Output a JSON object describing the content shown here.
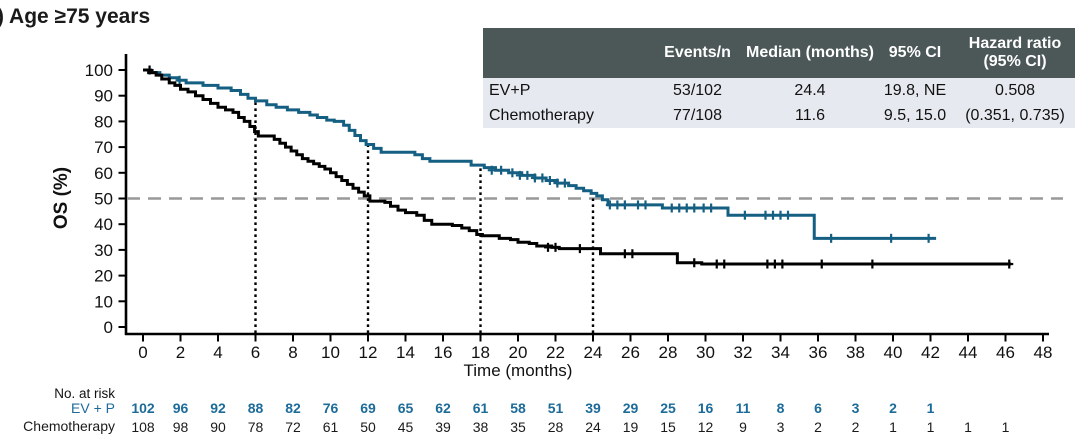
{
  "panel_label": ") Age ≥75 years",
  "y_axis": {
    "label": "OS (%)",
    "ticks": [
      0,
      10,
      20,
      30,
      40,
      50,
      60,
      70,
      80,
      90,
      100
    ]
  },
  "x_axis": {
    "label": "Time (months)",
    "ticks": [
      0,
      2,
      4,
      6,
      8,
      10,
      12,
      14,
      16,
      18,
      20,
      22,
      24,
      26,
      28,
      30,
      32,
      34,
      36,
      38,
      40,
      42,
      44,
      46,
      48
    ]
  },
  "summary_table": {
    "headers": [
      "",
      "Events/n",
      "Median (months)",
      "95% CI",
      "Hazard ratio (95% CI)"
    ],
    "rows": [
      {
        "name": "EV+P",
        "events_n": "53/102",
        "median": "24.4",
        "ci": "19.8, NE",
        "hr": "0.508"
      },
      {
        "name": "Chemotherapy",
        "events_n": "77/108",
        "median": "11.6",
        "ci": "9.5, 15.0",
        "hr": "(0.351, 0.735)"
      }
    ],
    "header_bg": "#4c5758",
    "row_bg": "#e7e9f0"
  },
  "risk_table": {
    "title": "No. at risk",
    "rows": [
      {
        "label": "EV + P",
        "color": "#1c6b99",
        "bold": true,
        "months": [
          0,
          2,
          4,
          6,
          8,
          10,
          12,
          14,
          16,
          18,
          20,
          22,
          24,
          26,
          28,
          30,
          32,
          34,
          36,
          38,
          40,
          42
        ],
        "values": [
          102,
          96,
          92,
          88,
          82,
          76,
          69,
          65,
          62,
          61,
          58,
          51,
          39,
          29,
          25,
          16,
          11,
          8,
          6,
          3,
          2,
          1
        ]
      },
      {
        "label": "Chemotherapy",
        "color": "#1a1a1a",
        "bold": false,
        "months": [
          0,
          2,
          4,
          6,
          8,
          10,
          12,
          14,
          16,
          18,
          20,
          22,
          24,
          26,
          28,
          30,
          32,
          34,
          36,
          38,
          40,
          42,
          44,
          46
        ],
        "values": [
          108,
          98,
          90,
          78,
          72,
          61,
          50,
          45,
          39,
          38,
          35,
          28,
          24,
          19,
          15,
          12,
          9,
          3,
          2,
          2,
          1,
          1,
          1,
          1
        ]
      }
    ]
  },
  "chart_data": {
    "type": "line",
    "subtype": "kaplan-meier",
    "title": ") Age ≥75 years",
    "xlabel": "Time (months)",
    "ylabel": "OS (%)",
    "xlim": [
      0,
      48
    ],
    "ylim": [
      0,
      100
    ],
    "grid": false,
    "reference_line_y": 50,
    "reference_line_color": "#999999",
    "landmark_lines": [
      {
        "x": 6,
        "top": 88
      },
      {
        "x": 12,
        "top": 71
      },
      {
        "x": 18,
        "top": 63
      },
      {
        "x": 24,
        "top": 50
      }
    ],
    "series": [
      {
        "name": "EV+P",
        "color": "#155f82",
        "end": 42.3,
        "steps": [
          [
            0,
            100
          ],
          [
            0.4,
            99
          ],
          [
            0.9,
            98
          ],
          [
            1.4,
            97
          ],
          [
            1.9,
            96
          ],
          [
            2.3,
            95
          ],
          [
            3.2,
            94
          ],
          [
            4.0,
            93
          ],
          [
            4.7,
            92
          ],
          [
            5.2,
            90.5
          ],
          [
            5.6,
            89
          ],
          [
            6.0,
            88
          ],
          [
            6.6,
            86.5
          ],
          [
            7.1,
            85.5
          ],
          [
            7.7,
            84.5
          ],
          [
            8.3,
            83.5
          ],
          [
            8.9,
            82.5
          ],
          [
            9.3,
            81.5
          ],
          [
            9.8,
            80.5
          ],
          [
            10.2,
            80
          ],
          [
            10.7,
            78.5
          ],
          [
            11.0,
            76.5
          ],
          [
            11.3,
            74.5
          ],
          [
            11.6,
            72.5
          ],
          [
            11.9,
            71
          ],
          [
            12.3,
            69.5
          ],
          [
            12.7,
            68
          ],
          [
            14.5,
            67
          ],
          [
            14.9,
            65.5
          ],
          [
            15.3,
            64.5
          ],
          [
            17.5,
            63
          ],
          [
            18.2,
            62
          ],
          [
            18.8,
            61
          ],
          [
            19.5,
            60
          ],
          [
            20.2,
            59
          ],
          [
            20.9,
            58
          ],
          [
            21.5,
            57
          ],
          [
            22.1,
            56
          ],
          [
            22.7,
            55
          ],
          [
            23.1,
            54
          ],
          [
            23.5,
            53
          ],
          [
            23.9,
            52
          ],
          [
            24.2,
            51
          ],
          [
            24.5,
            49.5
          ],
          [
            24.8,
            47.5
          ],
          [
            27.7,
            46.3
          ],
          [
            31.2,
            43.5
          ],
          [
            35.8,
            34.5
          ]
        ],
        "censors": [
          [
            1.95,
            96
          ],
          [
            18.6,
            61
          ],
          [
            19.1,
            61
          ],
          [
            19.7,
            60
          ],
          [
            20.1,
            59
          ],
          [
            20.5,
            59
          ],
          [
            20.9,
            58
          ],
          [
            21.3,
            58
          ],
          [
            21.7,
            57
          ],
          [
            22.1,
            56
          ],
          [
            22.5,
            56
          ],
          [
            24.9,
            47.5
          ],
          [
            25.3,
            47.5
          ],
          [
            25.7,
            47.5
          ],
          [
            26.4,
            47.5
          ],
          [
            26.8,
            47.5
          ],
          [
            28.2,
            46.3
          ],
          [
            28.6,
            46.3
          ],
          [
            29.0,
            46.3
          ],
          [
            29.4,
            46.3
          ],
          [
            29.9,
            46.3
          ],
          [
            30.3,
            46.3
          ],
          [
            32.1,
            43.5
          ],
          [
            33.2,
            43.5
          ],
          [
            33.6,
            43.5
          ],
          [
            34.0,
            43.5
          ],
          [
            34.4,
            43.5
          ],
          [
            36.7,
            34.5
          ],
          [
            39.9,
            34.5
          ],
          [
            41.9,
            34.5
          ]
        ]
      },
      {
        "name": "Chemotherapy",
        "color": "#000000",
        "end": 46.3,
        "steps": [
          [
            0,
            100
          ],
          [
            0.3,
            99
          ],
          [
            0.7,
            98
          ],
          [
            1.0,
            96.5
          ],
          [
            1.4,
            95
          ],
          [
            1.7,
            94
          ],
          [
            2.0,
            92.5
          ],
          [
            2.4,
            91.5
          ],
          [
            2.8,
            90
          ],
          [
            3.2,
            88.5
          ],
          [
            3.6,
            87
          ],
          [
            4.0,
            85.5
          ],
          [
            4.4,
            84.5
          ],
          [
            4.8,
            83.5
          ],
          [
            5.1,
            81.5
          ],
          [
            5.4,
            80
          ],
          [
            5.7,
            78
          ],
          [
            5.95,
            76
          ],
          [
            6.15,
            74.3
          ],
          [
            7.0,
            73
          ],
          [
            7.3,
            71.5
          ],
          [
            7.6,
            70
          ],
          [
            7.9,
            68.5
          ],
          [
            8.2,
            67
          ],
          [
            8.5,
            65.5
          ],
          [
            8.8,
            64.5
          ],
          [
            9.1,
            63.5
          ],
          [
            9.4,
            62.5
          ],
          [
            9.7,
            61.5
          ],
          [
            10.0,
            60
          ],
          [
            10.3,
            58.5
          ],
          [
            10.6,
            57
          ],
          [
            10.9,
            55.5
          ],
          [
            11.2,
            54
          ],
          [
            11.5,
            52.5
          ],
          [
            11.8,
            51
          ],
          [
            12.1,
            49
          ],
          [
            12.9,
            48.5
          ],
          [
            13.2,
            47
          ],
          [
            13.6,
            45.5
          ],
          [
            14.0,
            44.5
          ],
          [
            14.6,
            43.5
          ],
          [
            15.0,
            41.5
          ],
          [
            15.4,
            40
          ],
          [
            16.5,
            39.5
          ],
          [
            17.0,
            38.5
          ],
          [
            17.4,
            37.5
          ],
          [
            17.8,
            36
          ],
          [
            18.1,
            35.5
          ],
          [
            19.0,
            34.5
          ],
          [
            19.6,
            34
          ],
          [
            20.0,
            33
          ],
          [
            20.6,
            32.5
          ],
          [
            21.0,
            31.5
          ],
          [
            21.8,
            31
          ],
          [
            22.2,
            30.5
          ],
          [
            24.4,
            28.5
          ],
          [
            28.5,
            25
          ],
          [
            29.8,
            24.5
          ]
        ],
        "censors": [
          [
            0.35,
            100
          ],
          [
            21.6,
            31
          ],
          [
            22.0,
            31
          ],
          [
            23.3,
            30.5
          ],
          [
            25.7,
            28.5
          ],
          [
            26.1,
            28.5
          ],
          [
            29.4,
            25
          ],
          [
            30.6,
            24.5
          ],
          [
            31.0,
            24.5
          ],
          [
            33.3,
            24.5
          ],
          [
            33.7,
            24.5
          ],
          [
            34.1,
            24.5
          ],
          [
            36.2,
            24.5
          ],
          [
            38.9,
            24.5
          ],
          [
            46.2,
            24.5
          ]
        ]
      }
    ]
  }
}
